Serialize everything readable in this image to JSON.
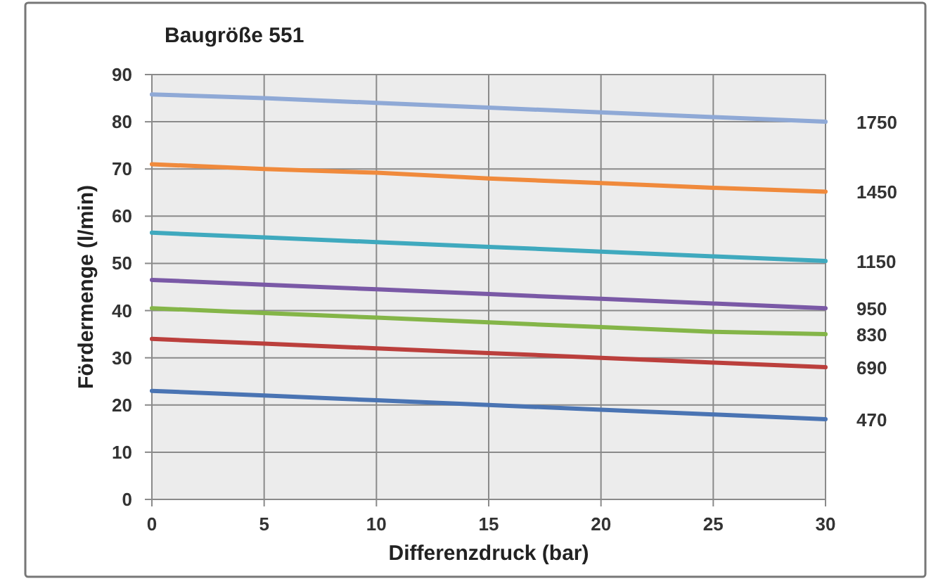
{
  "chart_data": {
    "type": "line",
    "title": "Baugröße 551",
    "xlabel": "Differenzdruck (bar)",
    "ylabel": "Fördermenge (l/min)",
    "x": [
      0,
      5,
      10,
      15,
      20,
      25,
      30
    ],
    "xlim": [
      0,
      30
    ],
    "xticks": [
      0,
      5,
      10,
      15,
      20,
      25,
      30
    ],
    "ylim": [
      0,
      90
    ],
    "yticks": [
      0,
      10,
      20,
      30,
      40,
      50,
      60,
      70,
      80,
      90
    ],
    "grid": true,
    "legend": false,
    "marker": "none",
    "line_style": "solid",
    "series": [
      {
        "name": "1750",
        "color": "#8fa9d6",
        "values": [
          85.8,
          85,
          84,
          83,
          82,
          81,
          80
        ]
      },
      {
        "name": "1450",
        "color": "#f08a3c",
        "values": [
          71,
          70,
          69.2,
          68,
          67,
          66,
          65.2
        ]
      },
      {
        "name": "1150",
        "color": "#3fa9be",
        "values": [
          56.5,
          55.5,
          54.5,
          53.5,
          52.5,
          51.5,
          50.5
        ]
      },
      {
        "name": "950",
        "color": "#7a59a6",
        "values": [
          46.5,
          45.5,
          44.5,
          43.5,
          42.5,
          41.5,
          40.5
        ]
      },
      {
        "name": "830",
        "color": "#84b548",
        "values": [
          40.5,
          39.5,
          38.5,
          37.5,
          36.5,
          35.5,
          35
        ]
      },
      {
        "name": "690",
        "color": "#bb3f3c",
        "values": [
          34,
          33,
          32,
          31,
          30,
          29,
          28
        ]
      },
      {
        "name": "470",
        "color": "#4a74b3",
        "values": [
          23,
          22,
          21,
          20,
          19,
          18,
          17
        ]
      }
    ]
  }
}
